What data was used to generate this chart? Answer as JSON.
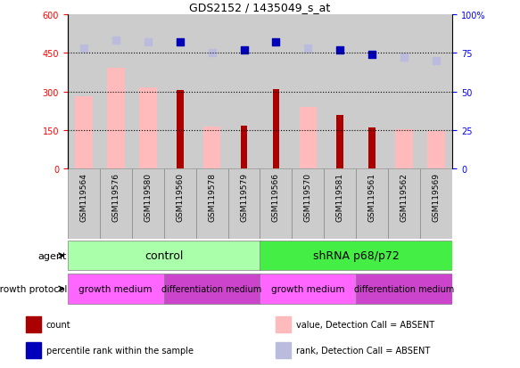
{
  "title": "GDS2152 / 1435049_s_at",
  "samples": [
    "GSM119564",
    "GSM119576",
    "GSM119580",
    "GSM119560",
    "GSM119578",
    "GSM119579",
    "GSM119566",
    "GSM119570",
    "GSM119581",
    "GSM119561",
    "GSM119562",
    "GSM119569"
  ],
  "count_values": [
    null,
    null,
    null,
    305,
    null,
    168,
    310,
    null,
    210,
    160,
    null,
    null
  ],
  "value_absent": [
    280,
    390,
    315,
    null,
    165,
    null,
    null,
    240,
    null,
    null,
    155,
    145
  ],
  "percentile_rank_right": [
    null,
    null,
    null,
    82,
    null,
    77,
    82,
    null,
    77,
    74,
    null,
    null
  ],
  "rank_absent_right": [
    78,
    83,
    82,
    null,
    75,
    null,
    null,
    78,
    null,
    null,
    72,
    70
  ],
  "left_ylim": [
    0,
    600
  ],
  "left_yticks": [
    0,
    150,
    300,
    450,
    600
  ],
  "right_ylim": [
    0,
    100
  ],
  "right_yticks": [
    0,
    25,
    50,
    75,
    100
  ],
  "color_count": "#aa0000",
  "color_percentile": "#0000bb",
  "color_value_absent": "#ffbbbb",
  "color_rank_absent": "#bbbbdd",
  "color_agent_control": "#aaffaa",
  "color_agent_shrna": "#44ee44",
  "color_growth_medium": "#ff66ff",
  "color_diff_medium": "#cc44cc",
  "color_col_bg": "#cccccc",
  "legend_items": [
    "count",
    "percentile rank within the sample",
    "value, Detection Call = ABSENT",
    "rank, Detection Call = ABSENT"
  ]
}
